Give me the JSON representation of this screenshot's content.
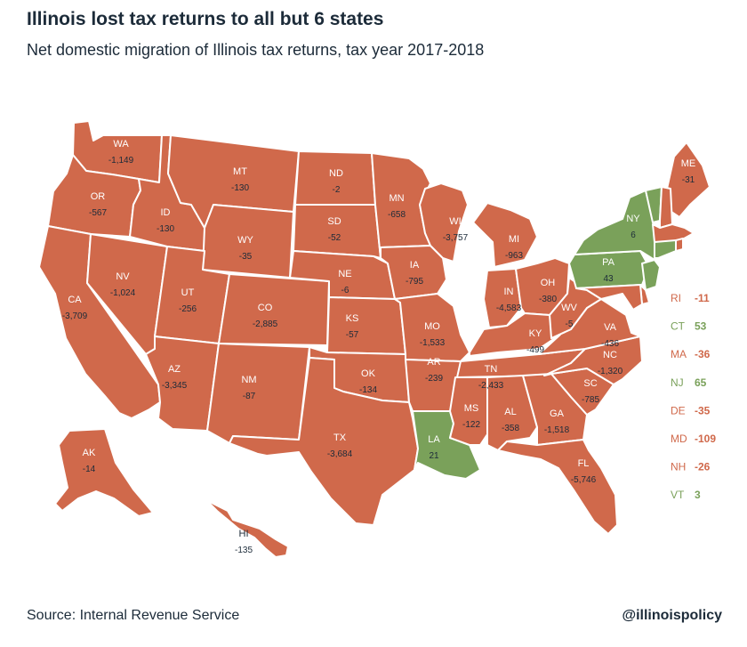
{
  "title": "Illinois lost tax returns to all but 6 states",
  "subtitle": "Net domestic migration of Illinois tax returns, tax year 2017-2018",
  "source": "Source: Internal Revenue Service",
  "handle": "@illinoispolicy",
  "colors": {
    "loss": "#d0694b",
    "gain": "#7aa15a",
    "border": "#ffffff",
    "text_dark": "#1c2b39"
  },
  "states": [
    {
      "abbr": "WA",
      "value": "-1,149",
      "status": "loss"
    },
    {
      "abbr": "OR",
      "value": "-567",
      "status": "loss"
    },
    {
      "abbr": "CA",
      "value": "-3,709",
      "status": "loss"
    },
    {
      "abbr": "NV",
      "value": "-1,024",
      "status": "loss"
    },
    {
      "abbr": "ID",
      "value": "-130",
      "status": "loss"
    },
    {
      "abbr": "MT",
      "value": "-130",
      "status": "loss"
    },
    {
      "abbr": "WY",
      "value": "-35",
      "status": "loss"
    },
    {
      "abbr": "UT",
      "value": "-256",
      "status": "loss"
    },
    {
      "abbr": "AZ",
      "value": "-3,345",
      "status": "loss"
    },
    {
      "abbr": "CO",
      "value": "-2,885",
      "status": "loss"
    },
    {
      "abbr": "NM",
      "value": "-87",
      "status": "loss"
    },
    {
      "abbr": "ND",
      "value": "-2",
      "status": "loss"
    },
    {
      "abbr": "SD",
      "value": "-52",
      "status": "loss"
    },
    {
      "abbr": "NE",
      "value": "-6",
      "status": "loss"
    },
    {
      "abbr": "KS",
      "value": "-57",
      "status": "loss"
    },
    {
      "abbr": "OK",
      "value": "-134",
      "status": "loss"
    },
    {
      "abbr": "TX",
      "value": "-3,684",
      "status": "loss"
    },
    {
      "abbr": "MN",
      "value": "-658",
      "status": "loss"
    },
    {
      "abbr": "IA",
      "value": "-795",
      "status": "loss"
    },
    {
      "abbr": "MO",
      "value": "-1,533",
      "status": "loss"
    },
    {
      "abbr": "AR",
      "value": "-239",
      "status": "loss"
    },
    {
      "abbr": "LA",
      "value": "21",
      "status": "gain"
    },
    {
      "abbr": "WI",
      "value": "-3,757",
      "status": "loss"
    },
    {
      "abbr": "MI",
      "value": "-963",
      "status": "loss"
    },
    {
      "abbr": "IN",
      "value": "-4,583",
      "status": "loss"
    },
    {
      "abbr": "OH",
      "value": "-380",
      "status": "loss"
    },
    {
      "abbr": "KY",
      "value": "-499",
      "status": "loss"
    },
    {
      "abbr": "TN",
      "value": "-2,433",
      "status": "loss"
    },
    {
      "abbr": "MS",
      "value": "-122",
      "status": "loss"
    },
    {
      "abbr": "AL",
      "value": "-358",
      "status": "loss"
    },
    {
      "abbr": "GA",
      "value": "-1,518",
      "status": "loss"
    },
    {
      "abbr": "FL",
      "value": "-5,746",
      "status": "loss"
    },
    {
      "abbr": "SC",
      "value": "-785",
      "status": "loss"
    },
    {
      "abbr": "NC",
      "value": "-1,320",
      "status": "loss"
    },
    {
      "abbr": "VA",
      "value": "-436",
      "status": "loss"
    },
    {
      "abbr": "WV",
      "value": "-5",
      "status": "loss"
    },
    {
      "abbr": "PA",
      "value": "43",
      "status": "gain"
    },
    {
      "abbr": "NY",
      "value": "6",
      "status": "gain"
    },
    {
      "abbr": "ME",
      "value": "-31",
      "status": "loss"
    },
    {
      "abbr": "AK",
      "value": "-14",
      "status": "loss"
    },
    {
      "abbr": "HI",
      "value": "-135",
      "status": "loss"
    }
  ],
  "legend": [
    {
      "abbr": "RI",
      "value": "-11",
      "status": "loss"
    },
    {
      "abbr": "CT",
      "value": "53",
      "status": "gain"
    },
    {
      "abbr": "MA",
      "value": "-36",
      "status": "loss"
    },
    {
      "abbr": "NJ",
      "value": "65",
      "status": "gain"
    },
    {
      "abbr": "DE",
      "value": "-35",
      "status": "loss"
    },
    {
      "abbr": "MD",
      "value": "-109",
      "status": "loss"
    },
    {
      "abbr": "NH",
      "value": "-26",
      "status": "loss"
    },
    {
      "abbr": "VT",
      "value": "3",
      "status": "gain"
    }
  ]
}
